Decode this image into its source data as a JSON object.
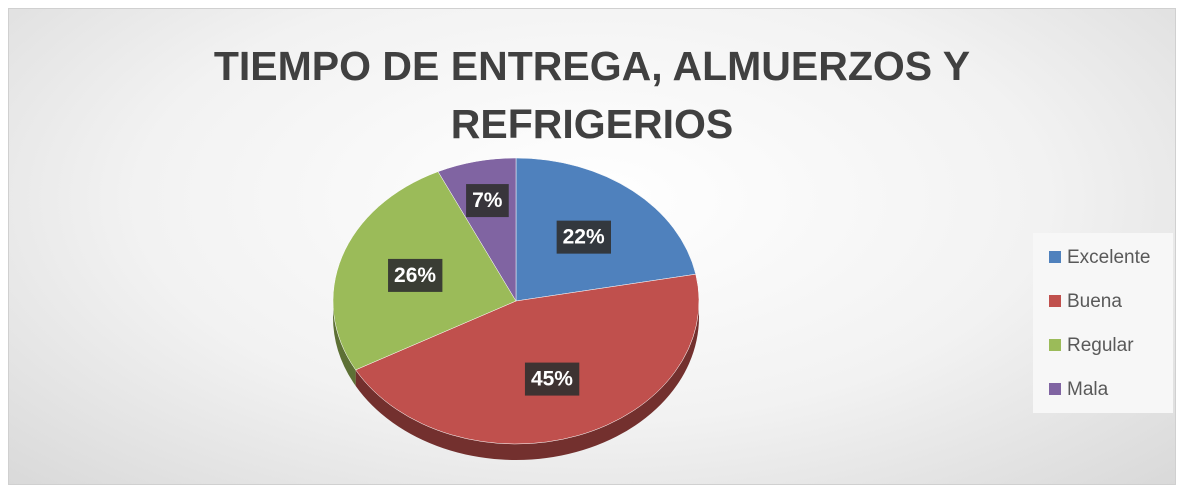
{
  "chart_data": {
    "type": "pie",
    "title": "TIEMPO DE ENTREGA, ALMUERZOS Y REFRIGERIOS",
    "categories": [
      "Excelente",
      "Buena",
      "Regular",
      "Mala"
    ],
    "values": [
      22,
      45,
      26,
      7
    ],
    "value_labels": [
      "22%",
      "45%",
      "26%",
      "7%"
    ],
    "colors": [
      "#4f81bd",
      "#c0504d",
      "#9bbb59",
      "#8064a2"
    ],
    "legend": "right"
  }
}
